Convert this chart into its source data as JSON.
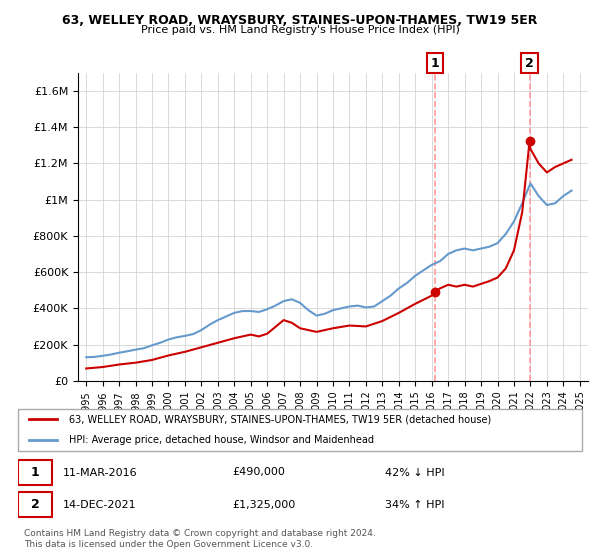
{
  "title": "63, WELLEY ROAD, WRAYSBURY, STAINES-UPON-THAMES, TW19 5ER",
  "subtitle": "Price paid vs. HM Land Registry's House Price Index (HPI)",
  "legend_line1": "63, WELLEY ROAD, WRAYSBURY, STAINES-UPON-THAMES, TW19 5ER (detached house)",
  "legend_line2": "HPI: Average price, detached house, Windsor and Maidenhead",
  "footnote": "Contains HM Land Registry data © Crown copyright and database right 2024.\nThis data is licensed under the Open Government Licence v3.0.",
  "annotation1_label": "1",
  "annotation1_date": "11-MAR-2016",
  "annotation1_price": "£490,000",
  "annotation1_hpi": "42% ↓ HPI",
  "annotation2_label": "2",
  "annotation2_date": "14-DEC-2021",
  "annotation2_price": "£1,325,000",
  "annotation2_hpi": "34% ↑ HPI",
  "sale1_x": 2016.19,
  "sale1_y": 490000,
  "sale2_x": 2021.95,
  "sale2_y": 1325000,
  "red_color": "#cc0000",
  "blue_color": "#6699cc",
  "annotation_box_color": "#cc0000",
  "vline_color": "#ff9999",
  "background_color": "#ffffff",
  "grid_color": "#cccccc",
  "ylim": [
    0,
    1700000
  ],
  "xlim": [
    1994.5,
    2025.5
  ],
  "hpi_data_x": [
    1995,
    1995.5,
    1996,
    1996.5,
    1997,
    1997.5,
    1998,
    1998.5,
    1999,
    1999.5,
    2000,
    2000.5,
    2001,
    2001.5,
    2002,
    2002.5,
    2003,
    2003.5,
    2004,
    2004.5,
    2005,
    2005.5,
    2006,
    2006.5,
    2007,
    2007.5,
    2008,
    2008.5,
    2009,
    2009.5,
    2010,
    2010.5,
    2011,
    2011.5,
    2012,
    2012.5,
    2013,
    2013.5,
    2014,
    2014.5,
    2015,
    2015.5,
    2016,
    2016.5,
    2017,
    2017.5,
    2018,
    2018.5,
    2019,
    2019.5,
    2020,
    2020.5,
    2021,
    2021.5,
    2022,
    2022.5,
    2023,
    2023.5,
    2024,
    2024.5
  ],
  "hpi_data_y": [
    130000,
    132000,
    138000,
    145000,
    155000,
    163000,
    172000,
    180000,
    196000,
    210000,
    228000,
    240000,
    248000,
    258000,
    280000,
    310000,
    335000,
    355000,
    375000,
    385000,
    385000,
    380000,
    395000,
    415000,
    440000,
    450000,
    430000,
    390000,
    360000,
    370000,
    390000,
    400000,
    410000,
    415000,
    405000,
    410000,
    440000,
    470000,
    510000,
    540000,
    580000,
    610000,
    640000,
    660000,
    700000,
    720000,
    730000,
    720000,
    730000,
    740000,
    760000,
    810000,
    880000,
    980000,
    1090000,
    1020000,
    970000,
    980000,
    1020000,
    1050000
  ],
  "price_paid_x": [
    1995,
    1995.5,
    1996,
    1997,
    1998,
    1999,
    2000,
    2001,
    2002,
    2003,
    2004,
    2005,
    2005.5,
    2006,
    2007,
    2007.5,
    2008,
    2009,
    2010,
    2011,
    2012,
    2013,
    2014,
    2015,
    2016,
    2016.19,
    2016.5,
    2017,
    2017.5,
    2018,
    2018.5,
    2019,
    2019.5,
    2020,
    2020.5,
    2021,
    2021.5,
    2021.95,
    2022,
    2022.5,
    2023,
    2023.5,
    2024,
    2024.5
  ],
  "price_paid_y": [
    68000,
    72000,
    76000,
    90000,
    100000,
    115000,
    140000,
    160000,
    185000,
    210000,
    235000,
    255000,
    245000,
    260000,
    335000,
    320000,
    290000,
    270000,
    290000,
    305000,
    300000,
    330000,
    375000,
    425000,
    470000,
    490000,
    510000,
    530000,
    520000,
    530000,
    520000,
    535000,
    550000,
    570000,
    620000,
    720000,
    930000,
    1325000,
    1280000,
    1200000,
    1150000,
    1180000,
    1200000,
    1220000
  ]
}
